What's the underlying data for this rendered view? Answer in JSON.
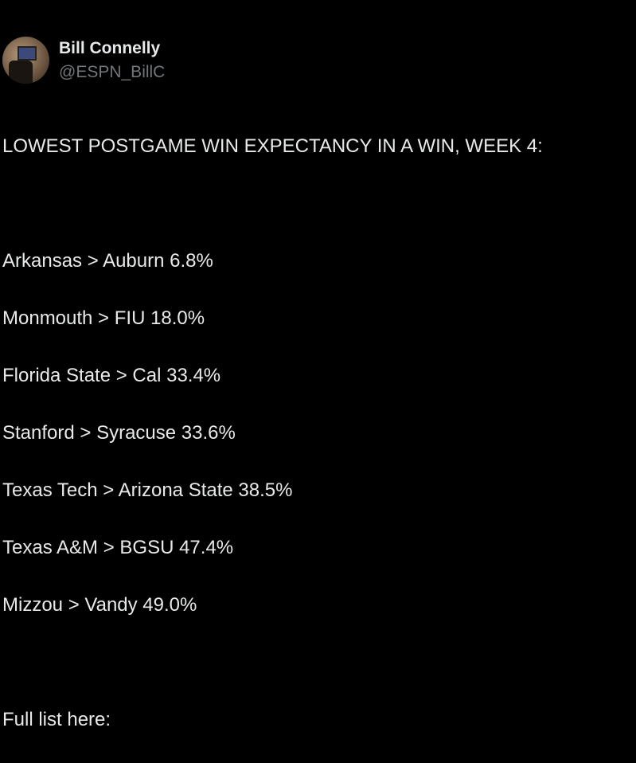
{
  "author": {
    "name": "Bill Connelly",
    "handle": "@ESPN_BillC"
  },
  "tweet": {
    "heading": "LOWEST POSTGAME WIN EXPECTANCY IN A WIN, WEEK 4:",
    "lines": [
      "Arkansas > Auburn 6.8%",
      "Monmouth > FIU 18.0%",
      "Florida State > Cal 33.4%",
      "Stanford > Syracuse 33.6%",
      "Texas Tech > Arizona State 38.5%",
      "Texas A&M > BGSU 47.4%",
      "Mizzou > Vandy 49.0%"
    ],
    "footer": "Full list here:"
  }
}
